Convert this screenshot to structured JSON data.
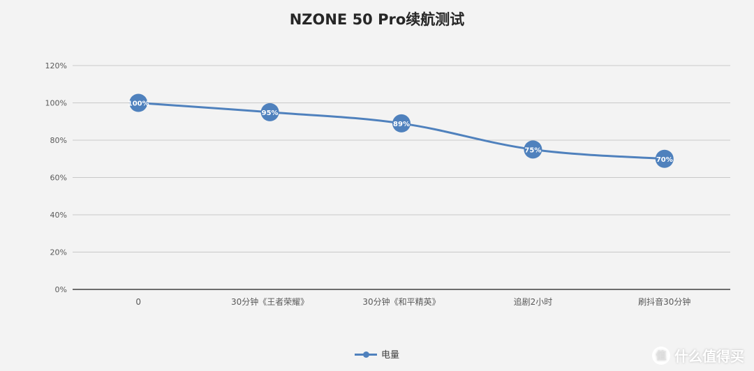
{
  "chart_data": {
    "type": "line",
    "title": "NZONE 50 Pro续航测试",
    "categories": [
      "0",
      "30分钟《王者荣耀》",
      "30分钟《和平精英》",
      "追剧2小时",
      "刷抖音30分钟"
    ],
    "series": [
      {
        "name": "电量",
        "values": [
          100,
          95,
          89,
          75,
          70
        ],
        "data_labels": [
          "100%",
          "95%",
          "89%",
          "75%",
          "70%"
        ],
        "color": "#4f81bd"
      }
    ],
    "ylim": [
      0,
      120
    ],
    "yticks": [
      "0%",
      "20%",
      "40%",
      "60%",
      "80%",
      "100%",
      "120%"
    ],
    "grid": true,
    "legend_position": "bottom"
  },
  "watermark": {
    "badge": "值",
    "text": "什么值得买"
  }
}
